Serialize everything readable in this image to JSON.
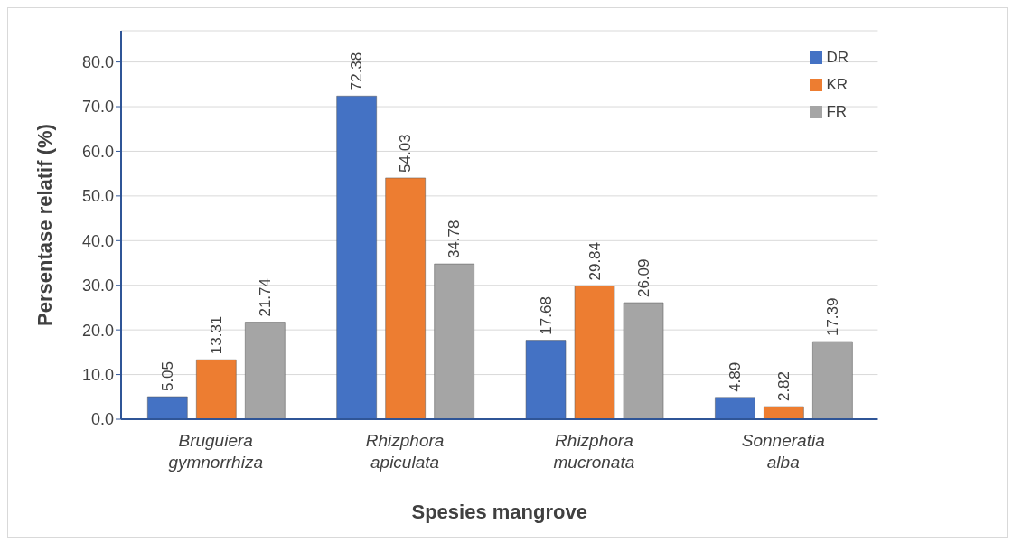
{
  "chart_data": {
    "type": "bar",
    "xlabel": "Spesies mangrove",
    "ylabel": "Persentase relatif (%)",
    "categories": [
      "Bruguiera gymnorrhiza",
      "Rhizphora apiculata",
      "Rhizphora mucronata",
      "Sonneratia alba"
    ],
    "series": [
      {
        "name": "DR",
        "color": "#4472c4",
        "values": [
          5.05,
          72.38,
          17.68,
          4.89
        ]
      },
      {
        "name": "KR",
        "color": "#ed7d31",
        "values": [
          13.31,
          54.03,
          29.84,
          2.82
        ]
      },
      {
        "name": "FR",
        "color": "#a5a5a5",
        "values": [
          21.74,
          34.78,
          26.09,
          17.39
        ]
      }
    ],
    "ylim": [
      0,
      87
    ],
    "yticks": [
      {
        "value": 0,
        "label": "0.0"
      },
      {
        "value": 10,
        "label": "10.0"
      },
      {
        "value": 20,
        "label": "20.0"
      },
      {
        "value": 30,
        "label": "30.0"
      },
      {
        "value": 40,
        "label": "40.0"
      },
      {
        "value": 50,
        "label": "50.0"
      },
      {
        "value": 60,
        "label": "60.0"
      },
      {
        "value": 70,
        "label": "70.0"
      },
      {
        "value": 80,
        "label": "80.0"
      }
    ],
    "grid": "y",
    "legend": "top right",
    "data_labels": true
  }
}
